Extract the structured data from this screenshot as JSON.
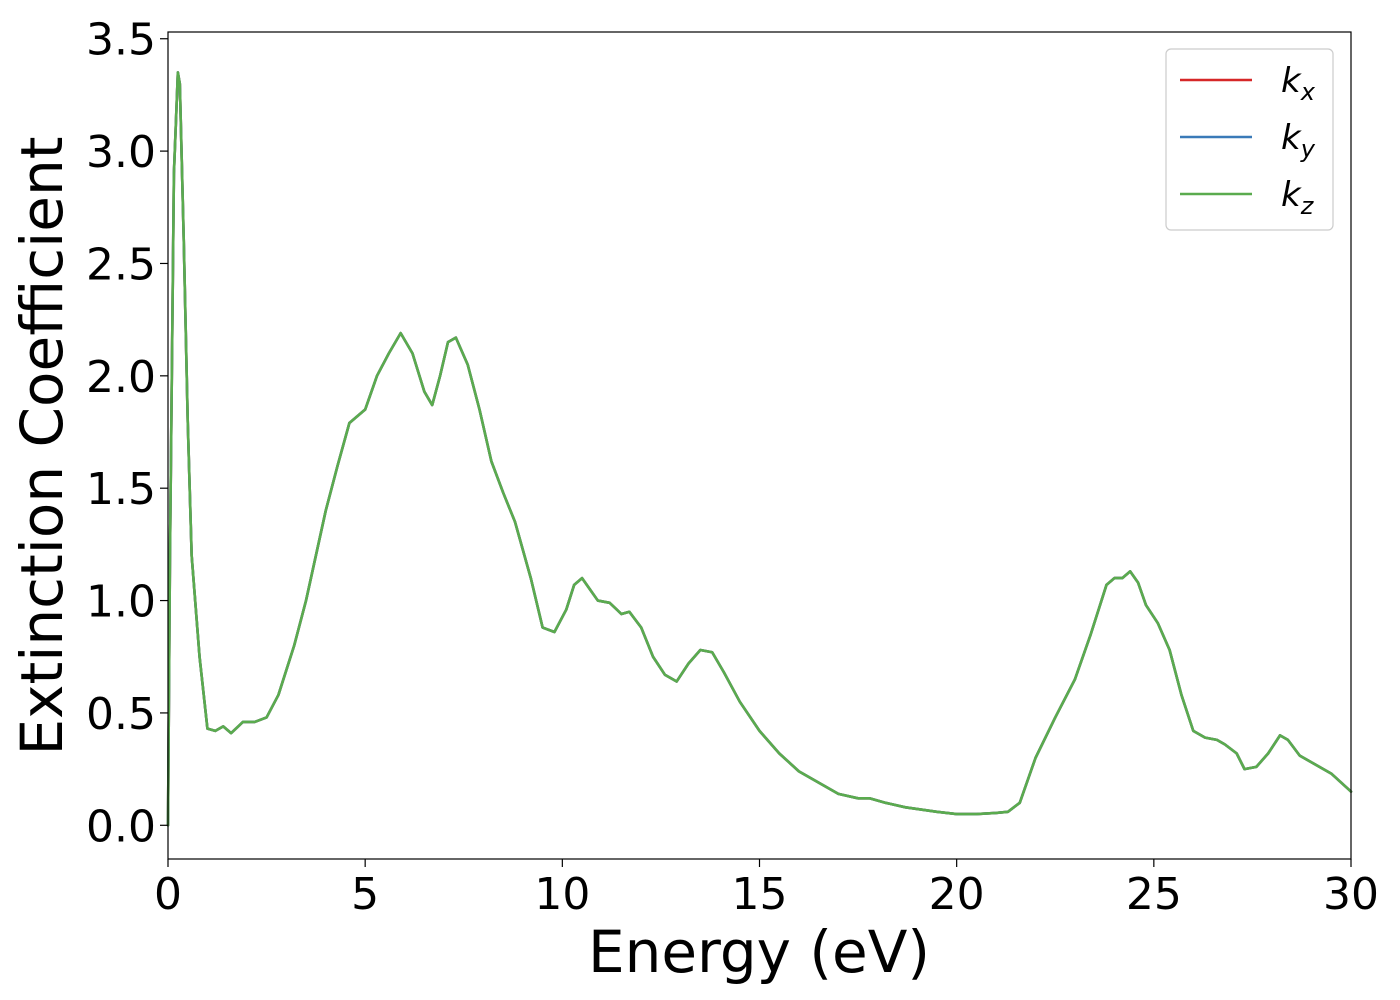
{
  "chart_data": {
    "type": "line",
    "title": "",
    "xlabel": "Energy (eV)",
    "ylabel": "Extinction Coefficient",
    "xlim": [
      0,
      30
    ],
    "ylim": [
      -0.15,
      3.53
    ],
    "xticks": [
      0,
      5,
      10,
      15,
      20,
      25,
      30
    ],
    "xtick_labels": [
      "0",
      "5",
      "10",
      "15",
      "20",
      "25",
      "30"
    ],
    "yticks": [
      0.0,
      0.5,
      1.0,
      1.5,
      2.0,
      2.5,
      3.0,
      3.5
    ],
    "ytick_labels": [
      "0.0",
      "0.5",
      "1.0",
      "1.5",
      "2.0",
      "2.5",
      "3.0",
      "3.5"
    ],
    "grid": false,
    "legend_position": "top-right",
    "x": [
      0,
      0.05,
      0.15,
      0.25,
      0.3,
      0.4,
      0.5,
      0.6,
      0.8,
      1.0,
      1.2,
      1.4,
      1.6,
      1.9,
      2.2,
      2.5,
      2.8,
      3.2,
      3.5,
      4.0,
      4.3,
      4.6,
      5.0,
      5.3,
      5.6,
      5.9,
      6.2,
      6.5,
      6.7,
      6.9,
      7.1,
      7.3,
      7.6,
      7.9,
      8.2,
      8.5,
      8.8,
      9.2,
      9.5,
      9.8,
      10.1,
      10.3,
      10.5,
      10.7,
      10.9,
      11.2,
      11.5,
      11.7,
      12.0,
      12.3,
      12.6,
      12.9,
      13.2,
      13.5,
      13.8,
      14.1,
      14.5,
      15.0,
      15.5,
      16.0,
      16.5,
      17.0,
      17.5,
      17.8,
      18.2,
      18.7,
      19.5,
      20.0,
      20.5,
      21.0,
      21.3,
      21.6,
      22.0,
      22.5,
      23.0,
      23.4,
      23.8,
      24.0,
      24.2,
      24.4,
      24.6,
      24.8,
      25.1,
      25.4,
      25.7,
      26.0,
      26.3,
      26.6,
      26.8,
      27.1,
      27.3,
      27.6,
      27.9,
      28.2,
      28.4,
      28.7,
      29.0,
      29.5,
      30.0
    ],
    "series": [
      {
        "name": "k_x",
        "color": "#d62728",
        "values": [
          0.0,
          1.2,
          2.9,
          3.35,
          3.3,
          2.6,
          1.8,
          1.2,
          0.75,
          0.43,
          0.42,
          0.44,
          0.41,
          0.46,
          0.46,
          0.48,
          0.58,
          0.8,
          1.0,
          1.4,
          1.6,
          1.79,
          1.85,
          2.0,
          2.1,
          2.19,
          2.1,
          1.93,
          1.87,
          2.0,
          2.15,
          2.17,
          2.05,
          1.85,
          1.62,
          1.48,
          1.35,
          1.1,
          0.88,
          0.86,
          0.96,
          1.07,
          1.1,
          1.05,
          1.0,
          0.99,
          0.94,
          0.95,
          0.88,
          0.75,
          0.67,
          0.64,
          0.72,
          0.78,
          0.77,
          0.68,
          0.55,
          0.42,
          0.32,
          0.24,
          0.19,
          0.14,
          0.12,
          0.12,
          0.1,
          0.08,
          0.06,
          0.05,
          0.05,
          0.055,
          0.06,
          0.1,
          0.3,
          0.48,
          0.65,
          0.85,
          1.07,
          1.1,
          1.1,
          1.13,
          1.08,
          0.98,
          0.9,
          0.78,
          0.58,
          0.42,
          0.39,
          0.38,
          0.36,
          0.32,
          0.25,
          0.26,
          0.32,
          0.4,
          0.38,
          0.31,
          0.28,
          0.23,
          0.15
        ]
      },
      {
        "name": "k_y",
        "color": "#3a7ab8",
        "values": [
          0.0,
          1.2,
          2.9,
          3.35,
          3.3,
          2.6,
          1.8,
          1.2,
          0.75,
          0.43,
          0.42,
          0.44,
          0.41,
          0.46,
          0.46,
          0.48,
          0.58,
          0.8,
          1.0,
          1.4,
          1.6,
          1.79,
          1.85,
          2.0,
          2.1,
          2.19,
          2.1,
          1.93,
          1.87,
          2.0,
          2.15,
          2.17,
          2.05,
          1.85,
          1.62,
          1.48,
          1.35,
          1.1,
          0.88,
          0.86,
          0.96,
          1.07,
          1.1,
          1.05,
          1.0,
          0.99,
          0.94,
          0.95,
          0.88,
          0.75,
          0.67,
          0.64,
          0.72,
          0.78,
          0.77,
          0.68,
          0.55,
          0.42,
          0.32,
          0.24,
          0.19,
          0.14,
          0.12,
          0.12,
          0.1,
          0.08,
          0.06,
          0.05,
          0.05,
          0.055,
          0.06,
          0.1,
          0.3,
          0.48,
          0.65,
          0.85,
          1.07,
          1.1,
          1.1,
          1.13,
          1.08,
          0.98,
          0.9,
          0.78,
          0.58,
          0.42,
          0.39,
          0.38,
          0.36,
          0.32,
          0.25,
          0.26,
          0.32,
          0.4,
          0.38,
          0.31,
          0.28,
          0.23,
          0.15
        ]
      },
      {
        "name": "k_z",
        "color": "#5aab4e",
        "values": [
          0.0,
          1.2,
          2.9,
          3.35,
          3.3,
          2.6,
          1.8,
          1.2,
          0.75,
          0.43,
          0.42,
          0.44,
          0.41,
          0.46,
          0.46,
          0.48,
          0.58,
          0.8,
          1.0,
          1.4,
          1.6,
          1.79,
          1.85,
          2.0,
          2.1,
          2.19,
          2.1,
          1.93,
          1.87,
          2.0,
          2.15,
          2.17,
          2.05,
          1.85,
          1.62,
          1.48,
          1.35,
          1.1,
          0.88,
          0.86,
          0.96,
          1.07,
          1.1,
          1.05,
          1.0,
          0.99,
          0.94,
          0.95,
          0.88,
          0.75,
          0.67,
          0.64,
          0.72,
          0.78,
          0.77,
          0.68,
          0.55,
          0.42,
          0.32,
          0.24,
          0.19,
          0.14,
          0.12,
          0.12,
          0.1,
          0.08,
          0.06,
          0.05,
          0.05,
          0.055,
          0.06,
          0.1,
          0.3,
          0.48,
          0.65,
          0.85,
          1.07,
          1.1,
          1.1,
          1.13,
          1.08,
          0.98,
          0.9,
          0.78,
          0.58,
          0.42,
          0.39,
          0.38,
          0.36,
          0.32,
          0.25,
          0.26,
          0.32,
          0.4,
          0.38,
          0.31,
          0.28,
          0.23,
          0.15
        ]
      }
    ],
    "legend": [
      {
        "symbol": "k",
        "subscript": "x",
        "color": "#d62728"
      },
      {
        "symbol": "k",
        "subscript": "y",
        "color": "#3a7ab8"
      },
      {
        "symbol": "k",
        "subscript": "z",
        "color": "#5aab4e"
      }
    ]
  }
}
